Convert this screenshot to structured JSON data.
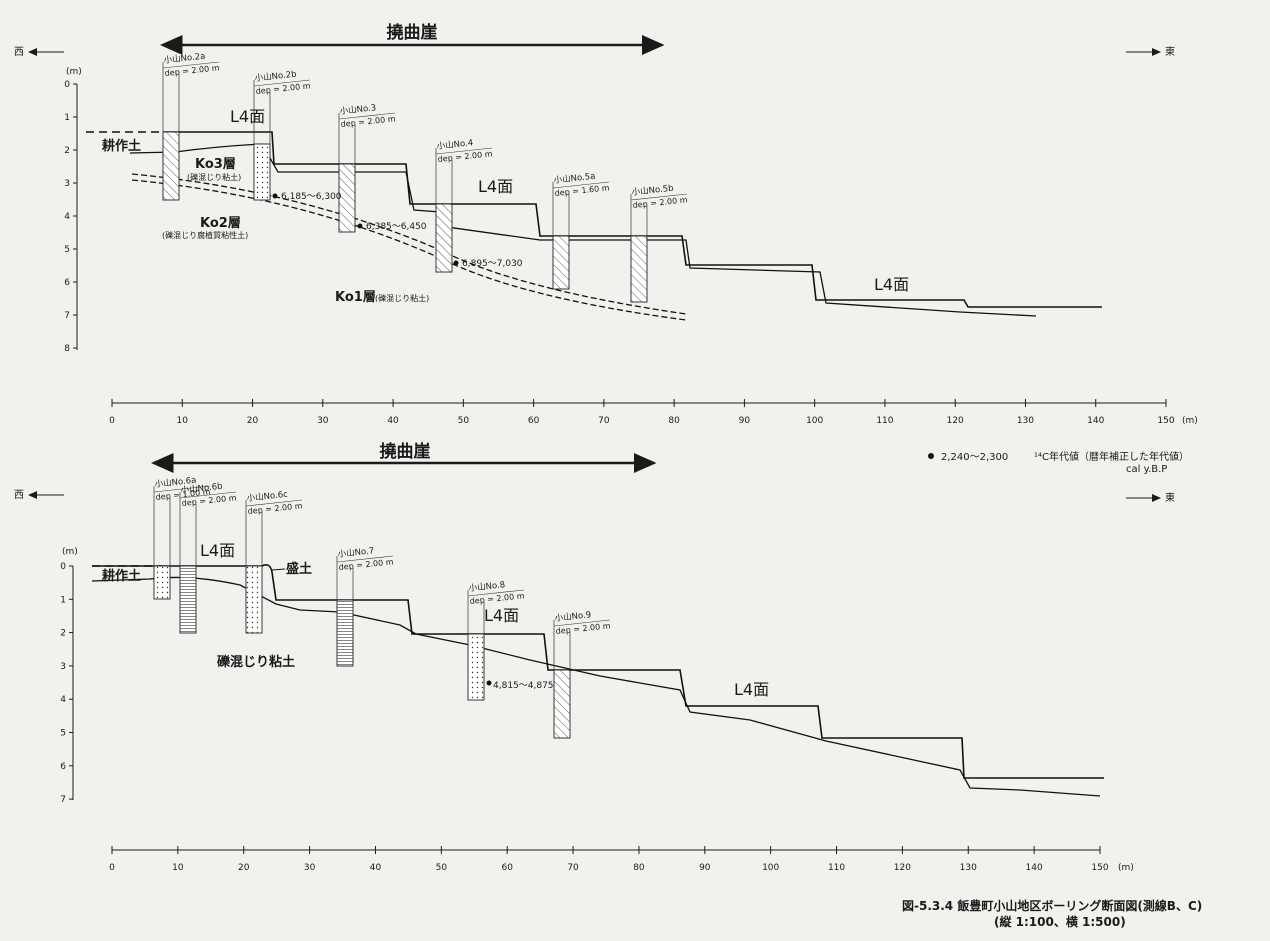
{
  "section_b": {
    "flexure_label": "撓曲崖",
    "west": "西",
    "east": "東",
    "depth_unit": "(m)",
    "dist_unit": "(m)",
    "depth_ticks": [
      "0",
      "1",
      "2",
      "3",
      "4",
      "5",
      "6",
      "7",
      "8"
    ],
    "dist_ticks": [
      "0",
      "10",
      "20",
      "30",
      "40",
      "50",
      "60",
      "70",
      "80",
      "90",
      "100",
      "110",
      "120",
      "130",
      "140",
      "150"
    ],
    "borings": [
      {
        "name": "小山No.2a",
        "dep": "dep = 2.00 m"
      },
      {
        "name": "小山No.2b",
        "dep": "dep = 2.00 m"
      },
      {
        "name": "小山No.3",
        "dep": "dep = 2.00 m"
      },
      {
        "name": "小山No.4",
        "dep": "dep = 2.00 m"
      },
      {
        "name": "小山No.5a",
        "dep": "dep = 1.60 m"
      },
      {
        "name": "小山No.5b",
        "dep": "dep = 2.00 m"
      }
    ],
    "surface_labels": [
      "L4面",
      "L4面",
      "L4面"
    ],
    "tilled_soil": "耕作土",
    "ko3": "Ko3層",
    "ko3_note": "(礫混じり粘土)",
    "ko2": "Ko2層",
    "ko2_note": "(礫混じり腐植質粘性土)",
    "ko1": "Ko1層",
    "ko1_note": "(礫混じり粘土)",
    "ages": [
      "6,185～6,300",
      "6,385～6,450",
      "6,895～7,030"
    ]
  },
  "legend": {
    "sample": "2,240～2,300",
    "text": "¹⁴C年代値（暦年補正した年代値）",
    "unit": "cal y.B.P"
  },
  "section_c": {
    "flexure_label": "撓曲崖",
    "west": "西",
    "east": "東",
    "depth_unit": "(m)",
    "dist_unit": "(m)",
    "depth_ticks": [
      "0",
      "1",
      "2",
      "3",
      "4",
      "5",
      "6",
      "7"
    ],
    "dist_ticks": [
      "0",
      "10",
      "20",
      "30",
      "40",
      "50",
      "60",
      "70",
      "80",
      "90",
      "100",
      "110",
      "120",
      "130",
      "140",
      "150"
    ],
    "borings": [
      {
        "name": "小山No.6a",
        "dep": "dep = 1.00 m"
      },
      {
        "name": "小山No.6b",
        "dep": "dep = 2.00 m"
      },
      {
        "name": "小山No.6c",
        "dep": "dep = 2.00 m"
      },
      {
        "name": "小山No.7",
        "dep": "dep = 2.00 m"
      },
      {
        "name": "小山No.8",
        "dep": "dep = 2.00 m"
      },
      {
        "name": "小山No.9",
        "dep": "dep = 2.00 m"
      }
    ],
    "surface_labels": [
      "L4面",
      "L4面",
      "L4面"
    ],
    "tilled_soil": "耕作土",
    "fill": "盛土",
    "gravel_clay": "礫混じり粘土",
    "ages": [
      "4,815～4,875"
    ]
  },
  "caption": {
    "title": "図-5.3.4  飯豊町小山地区ボーリング断面図(測線B、C)",
    "scale": "(縦  1:100、横  1:500)"
  }
}
